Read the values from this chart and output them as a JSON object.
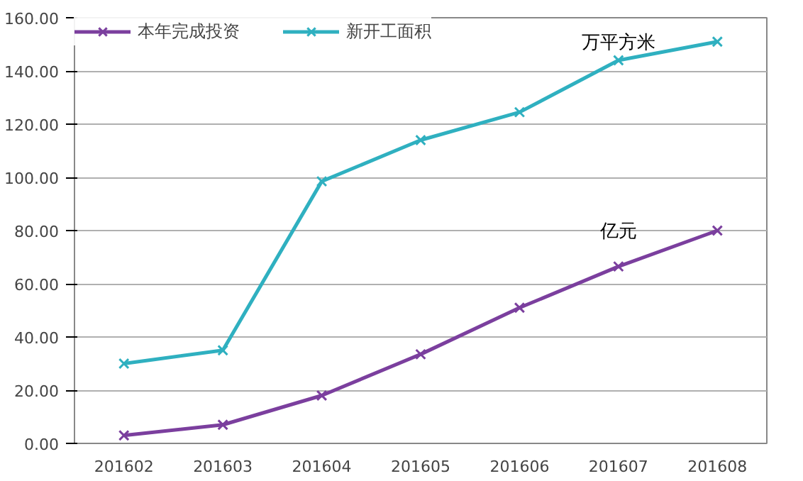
{
  "chart_data": {
    "type": "line",
    "categories": [
      "201602",
      "201603",
      "201604",
      "201605",
      "201606",
      "201607",
      "201608"
    ],
    "series": [
      {
        "name": "本年完成投资",
        "color": "#7b3f9e",
        "values": [
          3,
          7,
          18,
          33.5,
          51,
          66.5,
          80
        ]
      },
      {
        "name": "新开工面积",
        "color": "#2fb0c0",
        "values": [
          30,
          35,
          98.5,
          114,
          124.5,
          144,
          151
        ]
      }
    ],
    "ylim": [
      0,
      160
    ],
    "yticks": [
      {
        "value": 0,
        "label": "0.00"
      },
      {
        "value": 20,
        "label": "20.00"
      },
      {
        "value": 40,
        "label": "40.00"
      },
      {
        "value": 60,
        "label": "60.00"
      },
      {
        "value": 80,
        "label": "80.00"
      },
      {
        "value": 100,
        "label": "100.00"
      },
      {
        "value": 120,
        "label": "120.00"
      },
      {
        "value": 140,
        "label": "140.00"
      },
      {
        "value": 160,
        "label": "160.00"
      }
    ],
    "annotations": [
      "万平方米",
      "亿元"
    ],
    "grid": "y",
    "legend": "top left",
    "marker": "cross",
    "line_style": "solid"
  }
}
